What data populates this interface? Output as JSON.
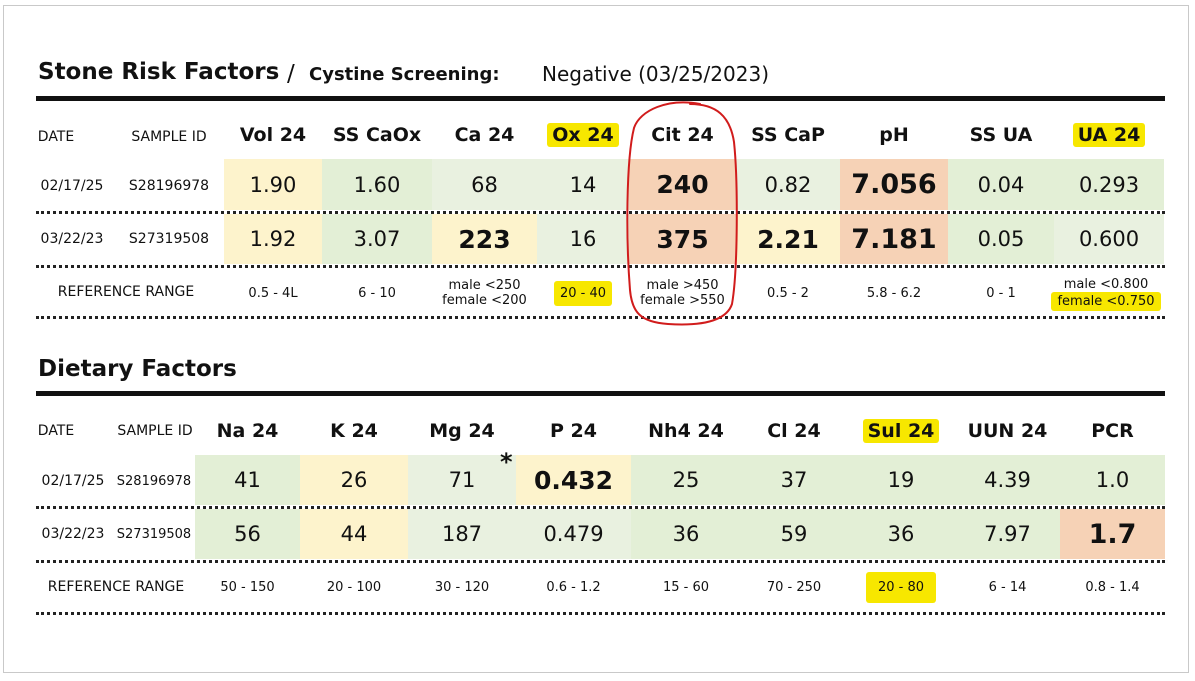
{
  "stone": {
    "title": "Stone Risk Factors",
    "slash": "/",
    "subtitle": "Cystine Screening:",
    "screening_result": "Negative (03/25/2023)",
    "col_date": "DATE",
    "col_sample": "SAMPLE ID",
    "headers": [
      "Vol 24",
      "SS CaOx",
      "Ca 24",
      "Ox 24",
      "Cit 24",
      "SS CaP",
      "pH",
      "SS UA",
      "UA 24"
    ],
    "rows": [
      {
        "date": "02/17/25",
        "sample": "S28196978",
        "values": [
          "1.90",
          "1.60",
          "68",
          "14",
          "240",
          "0.82",
          "7.056",
          "0.04",
          "0.293"
        ]
      },
      {
        "date": "03/22/23",
        "sample": "S27319508",
        "values": [
          "1.92",
          "3.07",
          "223",
          "16",
          "375",
          "2.21",
          "7.181",
          "0.05",
          "0.600"
        ]
      }
    ],
    "reference_label": "REFERENCE RANGE",
    "reference": [
      {
        "lines": [
          "0.5 - 4L"
        ]
      },
      {
        "lines": [
          "6 - 10"
        ]
      },
      {
        "lines": [
          "male <250",
          "female <200"
        ]
      },
      {
        "lines": [
          "20 - 40"
        ]
      },
      {
        "lines": [
          "male >450",
          "female >550"
        ]
      },
      {
        "lines": [
          "0.5 - 2"
        ]
      },
      {
        "lines": [
          "5.8 - 6.2"
        ]
      },
      {
        "lines": [
          "0 - 1"
        ]
      },
      {
        "lines": [
          "male <0.800",
          "female <0.750"
        ]
      }
    ]
  },
  "dietary": {
    "title": "Dietary Factors",
    "col_date": "DATE",
    "col_sample": "SAMPLE ID",
    "headers": [
      "Na 24",
      "K 24",
      "Mg 24",
      "P 24",
      "Nh4 24",
      "Cl 24",
      "Sul 24",
      "UUN 24",
      "PCR"
    ],
    "asterisk": "*",
    "rows": [
      {
        "date": "02/17/25",
        "sample": "S28196978",
        "values": [
          "41",
          "26",
          "71",
          "0.432",
          "25",
          "37",
          "19",
          "4.39",
          "1.0"
        ]
      },
      {
        "date": "03/22/23",
        "sample": "S27319508",
        "values": [
          "56",
          "44",
          "187",
          "0.479",
          "36",
          "59",
          "36",
          "7.97",
          "1.7"
        ]
      }
    ],
    "reference_label": "REFERENCE RANGE",
    "reference": [
      "50 - 150",
      "20 - 100",
      "30 - 120",
      "0.6 - 1.2",
      "15 - 60",
      "70 - 250",
      "20 - 80",
      "6 - 14",
      "0.8 - 1.4"
    ]
  },
  "colors": {
    "highlight_yellow": "#f7e700",
    "cell_green": "#e3efd6",
    "cell_yellow": "#fdf3cc",
    "cell_orange": "#f6d2b6",
    "annotation_red": "#d11c1c"
  }
}
